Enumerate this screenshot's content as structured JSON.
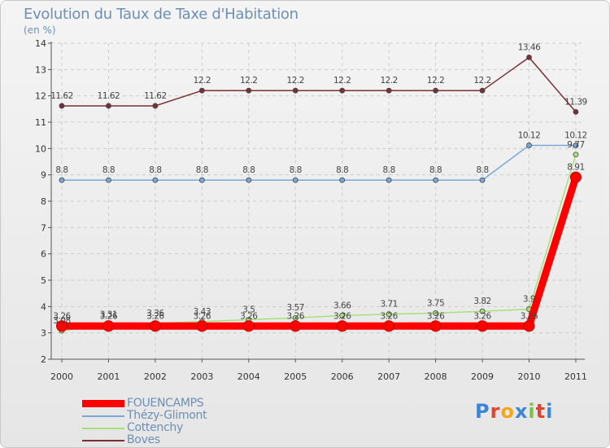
{
  "chart_data": {
    "type": "line",
    "title": "Evolution du Taux de Taxe d'Habitation",
    "ylabel": "(en %)",
    "xlabel": "",
    "categories": [
      "2000",
      "2001",
      "2002",
      "2003",
      "2004",
      "2005",
      "2006",
      "2007",
      "2008",
      "2009",
      "2010",
      "2011"
    ],
    "ylim": [
      2,
      14
    ],
    "yticks": [
      "2",
      "3",
      "4",
      "5",
      "6",
      "7",
      "8",
      "9",
      "10",
      "11",
      "12",
      "13",
      "14"
    ],
    "legend_position": "bottom-left",
    "series": [
      {
        "name": "FOUENCAMPS",
        "color": "#ff0000",
        "emphasis": true,
        "values": [
          3.26,
          3.26,
          3.26,
          3.26,
          3.26,
          3.26,
          3.26,
          3.26,
          3.26,
          3.26,
          3.26,
          8.91
        ],
        "labels": [
          "3.26",
          "3.26",
          "3.26",
          "3.26",
          "3.26",
          "3.26",
          "3.26",
          "3.26",
          "3.26",
          "3.26",
          "3.26",
          "8.91"
        ]
      },
      {
        "name": "Thézy-Glimont",
        "color": "#79a8d8",
        "values": [
          8.8,
          8.8,
          8.8,
          8.8,
          8.8,
          8.8,
          8.8,
          8.8,
          8.8,
          8.8,
          10.12,
          10.12
        ],
        "labels": [
          "8.8",
          "8.8",
          "8.8",
          "8.8",
          "8.8",
          "8.8",
          "8.8",
          "8.8",
          "8.8",
          "8.8",
          "10.12",
          "10.12"
        ]
      },
      {
        "name": "Cottenchy",
        "color": "#a6e07a",
        "values": [
          3.08,
          3.31,
          3.36,
          3.43,
          3.5,
          3.57,
          3.66,
          3.71,
          3.75,
          3.82,
          3.9,
          9.77
        ],
        "labels": [
          "3.08",
          "3.31",
          "3.36",
          "3.43",
          "3.5",
          "3.57",
          "3.66",
          "3.71",
          "3.75",
          "3.82",
          "3.9",
          "9.77"
        ]
      },
      {
        "name": "Boves",
        "color": "#7a3035",
        "values": [
          11.62,
          11.62,
          11.62,
          12.2,
          12.2,
          12.2,
          12.2,
          12.2,
          12.2,
          12.2,
          13.46,
          11.39
        ],
        "labels": [
          "11.62",
          "11.62",
          "11.62",
          "12.2",
          "12.2",
          "12.2",
          "12.2",
          "12.2",
          "12.2",
          "12.2",
          "13.46",
          "11.39"
        ]
      }
    ]
  },
  "brand": {
    "letters": [
      "P",
      "r",
      "o",
      "x",
      "i",
      "t",
      "i"
    ],
    "colors": [
      "#3d86d6",
      "#e0452f",
      "#f0a81c",
      "#3d86d6",
      "#7cc242",
      "#e0452f",
      "#3d86d6"
    ]
  }
}
